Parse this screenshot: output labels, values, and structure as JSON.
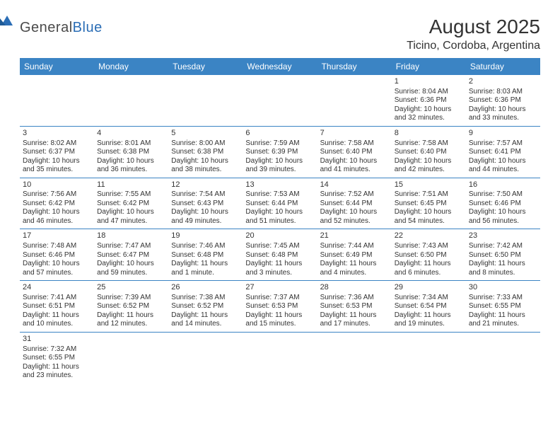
{
  "logo": {
    "part1": "General",
    "part2": "Blue"
  },
  "title": "August 2025",
  "location": "Ticino, Cordoba, Argentina",
  "colors": {
    "header_bg": "#3b84c4",
    "header_fg": "#ffffff",
    "logo_blue": "#2a6db5"
  },
  "dayNames": [
    "Sunday",
    "Monday",
    "Tuesday",
    "Wednesday",
    "Thursday",
    "Friday",
    "Saturday"
  ],
  "weeks": [
    [
      null,
      null,
      null,
      null,
      null,
      {
        "n": "1",
        "sr": "Sunrise: 8:04 AM",
        "ss": "Sunset: 6:36 PM",
        "d1": "Daylight: 10 hours",
        "d2": "and 32 minutes."
      },
      {
        "n": "2",
        "sr": "Sunrise: 8:03 AM",
        "ss": "Sunset: 6:36 PM",
        "d1": "Daylight: 10 hours",
        "d2": "and 33 minutes."
      }
    ],
    [
      {
        "n": "3",
        "sr": "Sunrise: 8:02 AM",
        "ss": "Sunset: 6:37 PM",
        "d1": "Daylight: 10 hours",
        "d2": "and 35 minutes."
      },
      {
        "n": "4",
        "sr": "Sunrise: 8:01 AM",
        "ss": "Sunset: 6:38 PM",
        "d1": "Daylight: 10 hours",
        "d2": "and 36 minutes."
      },
      {
        "n": "5",
        "sr": "Sunrise: 8:00 AM",
        "ss": "Sunset: 6:38 PM",
        "d1": "Daylight: 10 hours",
        "d2": "and 38 minutes."
      },
      {
        "n": "6",
        "sr": "Sunrise: 7:59 AM",
        "ss": "Sunset: 6:39 PM",
        "d1": "Daylight: 10 hours",
        "d2": "and 39 minutes."
      },
      {
        "n": "7",
        "sr": "Sunrise: 7:58 AM",
        "ss": "Sunset: 6:40 PM",
        "d1": "Daylight: 10 hours",
        "d2": "and 41 minutes."
      },
      {
        "n": "8",
        "sr": "Sunrise: 7:58 AM",
        "ss": "Sunset: 6:40 PM",
        "d1": "Daylight: 10 hours",
        "d2": "and 42 minutes."
      },
      {
        "n": "9",
        "sr": "Sunrise: 7:57 AM",
        "ss": "Sunset: 6:41 PM",
        "d1": "Daylight: 10 hours",
        "d2": "and 44 minutes."
      }
    ],
    [
      {
        "n": "10",
        "sr": "Sunrise: 7:56 AM",
        "ss": "Sunset: 6:42 PM",
        "d1": "Daylight: 10 hours",
        "d2": "and 46 minutes."
      },
      {
        "n": "11",
        "sr": "Sunrise: 7:55 AM",
        "ss": "Sunset: 6:42 PM",
        "d1": "Daylight: 10 hours",
        "d2": "and 47 minutes."
      },
      {
        "n": "12",
        "sr": "Sunrise: 7:54 AM",
        "ss": "Sunset: 6:43 PM",
        "d1": "Daylight: 10 hours",
        "d2": "and 49 minutes."
      },
      {
        "n": "13",
        "sr": "Sunrise: 7:53 AM",
        "ss": "Sunset: 6:44 PM",
        "d1": "Daylight: 10 hours",
        "d2": "and 51 minutes."
      },
      {
        "n": "14",
        "sr": "Sunrise: 7:52 AM",
        "ss": "Sunset: 6:44 PM",
        "d1": "Daylight: 10 hours",
        "d2": "and 52 minutes."
      },
      {
        "n": "15",
        "sr": "Sunrise: 7:51 AM",
        "ss": "Sunset: 6:45 PM",
        "d1": "Daylight: 10 hours",
        "d2": "and 54 minutes."
      },
      {
        "n": "16",
        "sr": "Sunrise: 7:50 AM",
        "ss": "Sunset: 6:46 PM",
        "d1": "Daylight: 10 hours",
        "d2": "and 56 minutes."
      }
    ],
    [
      {
        "n": "17",
        "sr": "Sunrise: 7:48 AM",
        "ss": "Sunset: 6:46 PM",
        "d1": "Daylight: 10 hours",
        "d2": "and 57 minutes."
      },
      {
        "n": "18",
        "sr": "Sunrise: 7:47 AM",
        "ss": "Sunset: 6:47 PM",
        "d1": "Daylight: 10 hours",
        "d2": "and 59 minutes."
      },
      {
        "n": "19",
        "sr": "Sunrise: 7:46 AM",
        "ss": "Sunset: 6:48 PM",
        "d1": "Daylight: 11 hours",
        "d2": "and 1 minute."
      },
      {
        "n": "20",
        "sr": "Sunrise: 7:45 AM",
        "ss": "Sunset: 6:48 PM",
        "d1": "Daylight: 11 hours",
        "d2": "and 3 minutes."
      },
      {
        "n": "21",
        "sr": "Sunrise: 7:44 AM",
        "ss": "Sunset: 6:49 PM",
        "d1": "Daylight: 11 hours",
        "d2": "and 4 minutes."
      },
      {
        "n": "22",
        "sr": "Sunrise: 7:43 AM",
        "ss": "Sunset: 6:50 PM",
        "d1": "Daylight: 11 hours",
        "d2": "and 6 minutes."
      },
      {
        "n": "23",
        "sr": "Sunrise: 7:42 AM",
        "ss": "Sunset: 6:50 PM",
        "d1": "Daylight: 11 hours",
        "d2": "and 8 minutes."
      }
    ],
    [
      {
        "n": "24",
        "sr": "Sunrise: 7:41 AM",
        "ss": "Sunset: 6:51 PM",
        "d1": "Daylight: 11 hours",
        "d2": "and 10 minutes."
      },
      {
        "n": "25",
        "sr": "Sunrise: 7:39 AM",
        "ss": "Sunset: 6:52 PM",
        "d1": "Daylight: 11 hours",
        "d2": "and 12 minutes."
      },
      {
        "n": "26",
        "sr": "Sunrise: 7:38 AM",
        "ss": "Sunset: 6:52 PM",
        "d1": "Daylight: 11 hours",
        "d2": "and 14 minutes."
      },
      {
        "n": "27",
        "sr": "Sunrise: 7:37 AM",
        "ss": "Sunset: 6:53 PM",
        "d1": "Daylight: 11 hours",
        "d2": "and 15 minutes."
      },
      {
        "n": "28",
        "sr": "Sunrise: 7:36 AM",
        "ss": "Sunset: 6:53 PM",
        "d1": "Daylight: 11 hours",
        "d2": "and 17 minutes."
      },
      {
        "n": "29",
        "sr": "Sunrise: 7:34 AM",
        "ss": "Sunset: 6:54 PM",
        "d1": "Daylight: 11 hours",
        "d2": "and 19 minutes."
      },
      {
        "n": "30",
        "sr": "Sunrise: 7:33 AM",
        "ss": "Sunset: 6:55 PM",
        "d1": "Daylight: 11 hours",
        "d2": "and 21 minutes."
      }
    ],
    [
      {
        "n": "31",
        "sr": "Sunrise: 7:32 AM",
        "ss": "Sunset: 6:55 PM",
        "d1": "Daylight: 11 hours",
        "d2": "and 23 minutes."
      },
      null,
      null,
      null,
      null,
      null,
      null
    ]
  ]
}
